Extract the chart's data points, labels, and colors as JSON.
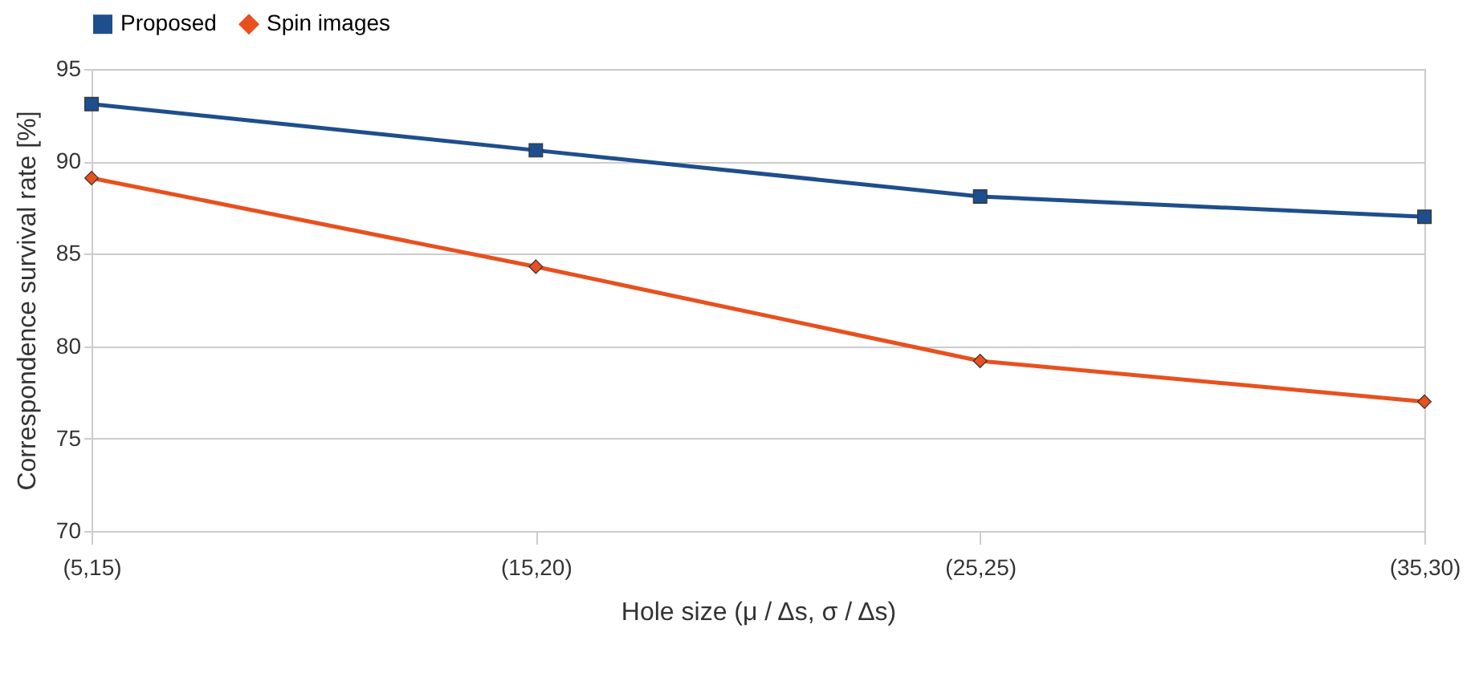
{
  "chart_data": {
    "type": "line",
    "xlabel": "Hole size (μ / Δs, σ / Δs)",
    "ylabel": "Correspondence survival rate [%]",
    "categories": [
      "(5,15)",
      "(15,20)",
      "(25,25)",
      "(35,30)"
    ],
    "series": [
      {
        "name": "Proposed",
        "color": "#1f4e8c",
        "marker": "square",
        "values": [
          93.1,
          90.6,
          88.1,
          87.0
        ]
      },
      {
        "name": "Spin images",
        "color": "#e8501e",
        "marker": "diamond",
        "values": [
          89.1,
          84.3,
          79.2,
          77.0
        ]
      }
    ],
    "ylim": [
      70,
      95
    ],
    "yticks": [
      70,
      75,
      80,
      85,
      90,
      95
    ],
    "grid": "y",
    "legend": "top",
    "line_style": "solid"
  }
}
